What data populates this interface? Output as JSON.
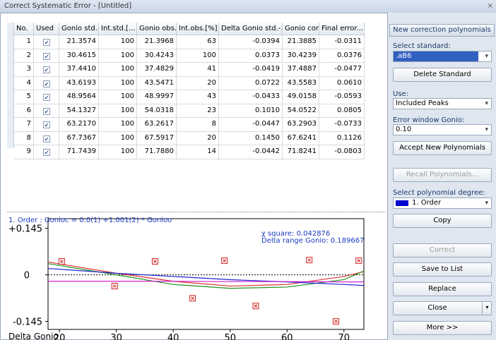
{
  "window": {
    "title": "Correct Systematic Error - [Untitled]"
  },
  "table": {
    "columns": [
      "No.",
      "Used",
      "Gonio std.",
      "Int.std.[...",
      "Gonio obs.",
      "Int.obs.[%]",
      "Delta Gonio std.-...",
      "Gonio cor.",
      "Final error..."
    ],
    "rows": [
      [
        "1",
        true,
        "21.3574",
        "100",
        "21.3968",
        "63",
        "-0.0394",
        "21.3885",
        "-0.0311"
      ],
      [
        "2",
        true,
        "30.4615",
        "100",
        "30.4243",
        "100",
        "0.0373",
        "30.4239",
        "0.0376"
      ],
      [
        "3",
        true,
        "37.4410",
        "100",
        "37.4829",
        "41",
        "-0.0419",
        "37.4887",
        "-0.0477"
      ],
      [
        "4",
        true,
        "43.6193",
        "100",
        "43.5471",
        "20",
        "0.0722",
        "43.5583",
        "0.0610"
      ],
      [
        "5",
        true,
        "48.9564",
        "100",
        "48.9997",
        "43",
        "-0.0433",
        "49.0158",
        "-0.0593"
      ],
      [
        "6",
        true,
        "54.1327",
        "100",
        "54.0318",
        "23",
        "0.1010",
        "54.0522",
        "0.0805"
      ],
      [
        "7",
        true,
        "63.2170",
        "100",
        "63.2617",
        "8",
        "-0.0447",
        "63.2903",
        "-0.0733"
      ],
      [
        "8",
        true,
        "67.7367",
        "100",
        "67.5917",
        "20",
        "0.1450",
        "67.6241",
        "0.1126"
      ],
      [
        "9",
        true,
        "71.7439",
        "100",
        "71.7880",
        "14",
        "-0.0442",
        "71.8241",
        "-0.0803"
      ]
    ]
  },
  "panel": {
    "header": "New correction polynomials",
    "select_standard_label": "Select standard:",
    "standard": ".aB6",
    "delete_button": "Delete Standard",
    "use_label": "Use:",
    "use": "Included Peaks",
    "error_window_label": "Error window Gonio:",
    "error_window": "0.10",
    "accept_button": "Accept New Polynomials",
    "recall_button": "Recall Polynomials...",
    "degree_label": "Select polynomial degree:",
    "degree": "1. Order",
    "degree_color": "#0000d0",
    "copy_button": "Copy",
    "correct_button": "Correct",
    "save_button": "Save to List",
    "replace_button": "Replace",
    "close_button": "Close",
    "more_button": "More >>"
  },
  "plot": {
    "title": "1. Order : Gonioc = 0.0(1) +1.001(2) * Gonioo",
    "annotations": [
      "χ square: 0.042876",
      "Delta range Gonio: 0.189667"
    ],
    "ylabel": "Delta Gonio",
    "xlim": [
      18,
      73.5
    ],
    "ylim": [
      -0.17,
      0.175
    ],
    "xticks": [
      20,
      30,
      40,
      50,
      60,
      70
    ],
    "yticks": [
      {
        "value": 0.145,
        "label": "+0.145"
      },
      0,
      {
        "value": -0.145,
        "label": "-0.145"
      }
    ],
    "points": {
      "color": "#d02020",
      "x": [
        20.4,
        29.7,
        36.8,
        43.4,
        49,
        54.5,
        63.9,
        68.6,
        72.6
      ],
      "values": [
        0.042,
        -0.035,
        0.042,
        -0.073,
        0.044,
        -0.097,
        0.046,
        -0.145,
        0.044
      ]
    },
    "curves": {
      "x": [
        18,
        30,
        40,
        50,
        60,
        70,
        73.5
      ],
      "series": [
        {
          "color": "#e03030",
          "values": [
            0.04,
            0.005,
            -0.02,
            -0.035,
            -0.03,
            -0.005,
            0.01
          ]
        },
        {
          "color": "#209020",
          "values": [
            0.035,
            0,
            -0.03,
            -0.042,
            -0.038,
            -0.015,
            0.012
          ]
        },
        {
          "color": "#2020d0",
          "values": [
            0.02,
            0.005,
            -0.005,
            -0.015,
            -0.022,
            -0.03,
            -0.033
          ]
        },
        {
          "color": "#d020d0",
          "values": [
            -0.02,
            -0.02,
            -0.02,
            -0.021,
            -0.021,
            -0.022,
            -0.022
          ]
        }
      ]
    }
  }
}
